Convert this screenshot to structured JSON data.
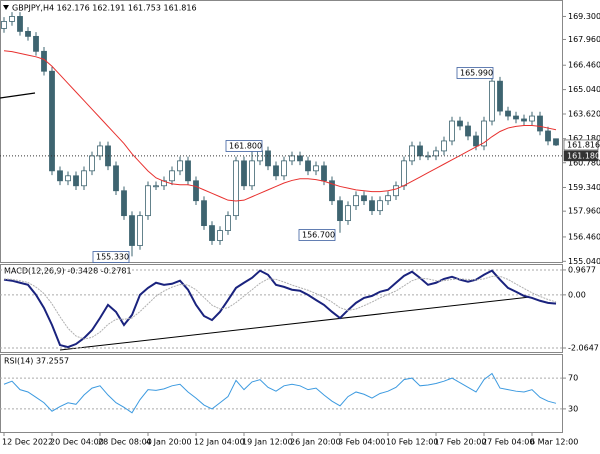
{
  "chart_data": [
    {
      "type": "candlestick",
      "title": "GBPJPY,H4  162.176 162.191 161.753 161.816",
      "categories": [
        "12 Dec 2022",
        null,
        null,
        null,
        null,
        null,
        "20 Dec 04:00",
        null,
        null,
        null,
        null,
        null,
        "28 Dec 08:00",
        null,
        null,
        null,
        null,
        null,
        "4 Jan 20:00",
        null,
        null,
        null,
        null,
        null,
        "12 Jan 04:00",
        null,
        null,
        null,
        null,
        null,
        "19 Jan 12:00",
        null,
        null,
        null,
        null,
        null,
        "26 Jan 20:00",
        null,
        null,
        null,
        null,
        null,
        "3 Feb 04:00",
        null,
        null,
        null,
        null,
        null,
        "10 Feb 12:00",
        null,
        null,
        null,
        null,
        null,
        "17 Feb 20:00",
        null,
        null,
        null,
        null,
        null,
        "27 Feb 04:00",
        null,
        null,
        null,
        null,
        null,
        "6 Mar 12:00",
        null,
        null,
        null
      ],
      "open": [
        168.6,
        169.01,
        169.3,
        168.43,
        168.14,
        167.27,
        166.11,
        160.31,
        159.73,
        160.02,
        159.44,
        160.31,
        161.18,
        161.76,
        160.6,
        159.15,
        157.7,
        155.96,
        157.7,
        159.44,
        159.44,
        159.73,
        160.31,
        160.89,
        159.73,
        158.57,
        157.12,
        156.25,
        156.83,
        157.7,
        160.89,
        159.44,
        160.89,
        161.47,
        160.6,
        160.02,
        160.89,
        161.18,
        160.89,
        160.31,
        160.6,
        159.73,
        158.57,
        157.41,
        158.28,
        158.86,
        158.57,
        157.99,
        158.57,
        158.86,
        159.44,
        160.89,
        161.76,
        161.18,
        161.18,
        161.47,
        162.05,
        163.21,
        162.92,
        162.34,
        161.76,
        163.21,
        165.53,
        163.79,
        163.5,
        163.33,
        163.21,
        163.5,
        162.63,
        162.176
      ],
      "high": [
        169.26,
        169.55,
        169.55,
        168.68,
        168.39,
        167.52,
        166.36,
        160.56,
        160.27,
        160.27,
        160.56,
        161.43,
        162.01,
        162.01,
        160.85,
        159.4,
        157.95,
        157.95,
        159.69,
        159.69,
        159.98,
        160.56,
        161.14,
        161.14,
        159.98,
        158.82,
        157.37,
        157.08,
        157.95,
        161.14,
        161.14,
        161.8,
        161.72,
        161.72,
        160.85,
        161.14,
        161.43,
        161.43,
        161.14,
        160.85,
        160.85,
        159.98,
        158.82,
        158.53,
        159.11,
        159.11,
        158.82,
        158.82,
        159.11,
        159.69,
        161.14,
        162.01,
        162.01,
        161.43,
        161.72,
        162.3,
        163.46,
        163.46,
        163.17,
        162.59,
        163.46,
        165.99,
        165.78,
        164.04,
        163.75,
        163.58,
        163.75,
        163.75,
        162.88,
        162.191
      ],
      "low": [
        168.35,
        168.76,
        168.18,
        167.89,
        167.02,
        165.86,
        160.06,
        159.48,
        159.48,
        159.19,
        159.19,
        160.06,
        160.93,
        160.35,
        158.9,
        157.45,
        155.33,
        155.71,
        157.45,
        159.19,
        159.19,
        159.48,
        160.06,
        159.48,
        158.32,
        156.87,
        156.0,
        156.0,
        156.58,
        157.45,
        159.19,
        159.19,
        160.64,
        160.35,
        159.77,
        159.77,
        160.64,
        160.64,
        160.06,
        160.06,
        159.48,
        158.32,
        156.7,
        157.16,
        158.03,
        158.32,
        157.74,
        157.74,
        158.32,
        158.61,
        159.19,
        160.64,
        160.93,
        160.93,
        160.93,
        161.22,
        161.8,
        162.67,
        162.09,
        161.51,
        161.51,
        162.96,
        163.54,
        163.25,
        163.08,
        162.96,
        162.96,
        162.38,
        161.8,
        161.753
      ],
      "close": [
        169.01,
        169.3,
        168.43,
        168.14,
        167.27,
        166.11,
        160.31,
        159.73,
        160.02,
        159.44,
        160.31,
        161.18,
        161.76,
        160.6,
        159.15,
        157.7,
        155.96,
        157.7,
        159.44,
        159.44,
        159.73,
        160.31,
        160.89,
        159.73,
        158.57,
        157.12,
        156.25,
        156.83,
        157.7,
        160.89,
        159.44,
        160.89,
        161.47,
        160.6,
        160.02,
        160.89,
        161.18,
        160.89,
        160.31,
        160.6,
        159.73,
        158.57,
        157.41,
        158.28,
        158.86,
        158.57,
        157.99,
        158.57,
        158.86,
        159.44,
        160.89,
        161.76,
        161.18,
        161.18,
        161.47,
        162.05,
        163.21,
        162.92,
        162.34,
        161.76,
        163.21,
        165.53,
        163.79,
        163.5,
        163.33,
        163.21,
        163.5,
        162.63,
        162.05,
        161.816
      ],
      "color": "#3e6470",
      "ma": {
        "color": "#e8312f",
        "values": [
          167.3,
          167.25,
          167.15,
          167.05,
          166.95,
          166.8,
          166.4,
          165.9,
          165.4,
          164.9,
          164.4,
          163.9,
          163.4,
          162.9,
          162.4,
          161.9,
          161.3,
          160.8,
          160.3,
          159.9,
          159.7,
          159.55,
          159.5,
          159.5,
          159.4,
          159.2,
          159.0,
          158.8,
          158.6,
          158.55,
          158.6,
          158.8,
          159.0,
          159.2,
          159.4,
          159.6,
          159.75,
          159.85,
          159.85,
          159.8,
          159.7,
          159.55,
          159.4,
          159.3,
          159.2,
          159.15,
          159.1,
          159.1,
          159.15,
          159.25,
          159.45,
          159.7,
          159.95,
          160.2,
          160.45,
          160.7,
          160.95,
          161.2,
          161.45,
          161.7,
          161.95,
          162.3,
          162.6,
          162.8,
          162.9,
          162.95,
          162.95,
          162.9,
          162.8,
          162.7
        ]
      },
      "ylim": [
        155.0,
        170.2
      ],
      "yticks": [
        {
          "value": 169.3,
          "label": "169.300"
        },
        {
          "value": 167.96,
          "label": "167.960"
        },
        {
          "value": 166.46,
          "label": "166.460"
        },
        {
          "value": 165.04,
          "label": "165.040"
        },
        {
          "value": 163.62,
          "label": "163.620"
        },
        {
          "value": 162.18,
          "label": "162.180"
        },
        {
          "value": 160.78,
          "label": "160.780"
        },
        {
          "value": 159.34,
          "label": "159.340"
        },
        {
          "value": 157.96,
          "label": "157.960"
        },
        {
          "value": 156.46,
          "label": "156.460"
        },
        {
          "value": 155.04,
          "label": "155.040"
        }
      ],
      "price_levels": [
        {
          "value": 161.816,
          "label": "161.816"
        },
        {
          "value": 161.18,
          "label": "161.180"
        }
      ],
      "annotations": [
        "165.990",
        "161.800",
        "155.330",
        "156.700"
      ]
    },
    {
      "type": "line",
      "title": "MACD(12,26,9) -0.3428 -0.2781",
      "series": [
        {
          "color": "#1a237e",
          "values": [
            0.59,
            0.55,
            0.47,
            0.39,
            0.0,
            -0.51,
            -1.17,
            -1.95,
            -2.03,
            -1.91,
            -1.68,
            -1.37,
            -0.9,
            -0.39,
            -0.66,
            -1.17,
            -0.78,
            0.0,
            0.27,
            0.47,
            0.39,
            0.43,
            0.55,
            0.2,
            -0.39,
            -0.82,
            -0.98,
            -0.66,
            -0.2,
            0.27,
            0.47,
            0.66,
            0.94,
            0.78,
            0.39,
            0.31,
            0.2,
            0.16,
            0.0,
            -0.2,
            -0.39,
            -0.66,
            -0.9,
            -0.59,
            -0.31,
            -0.12,
            -0.04,
            0.12,
            0.2,
            0.47,
            0.74,
            0.9,
            0.66,
            0.39,
            0.47,
            0.62,
            0.7,
            0.59,
            0.51,
            0.59,
            0.78,
            0.94,
            0.59,
            0.27,
            0.12,
            -0.04,
            -0.12,
            -0.23,
            -0.31,
            -0.3428
          ]
        },
        {
          "color": "#b0b0b0",
          "values": [
            0.62,
            0.6,
            0.55,
            0.48,
            0.3,
            0.05,
            -0.35,
            -0.85,
            -1.3,
            -1.6,
            -1.72,
            -1.65,
            -1.45,
            -1.15,
            -0.95,
            -0.95,
            -0.9,
            -0.65,
            -0.35,
            -0.05,
            0.15,
            0.3,
            0.4,
            0.38,
            0.2,
            -0.1,
            -0.4,
            -0.55,
            -0.5,
            -0.3,
            -0.05,
            0.2,
            0.45,
            0.62,
            0.6,
            0.5,
            0.38,
            0.28,
            0.18,
            0.05,
            -0.1,
            -0.28,
            -0.5,
            -0.6,
            -0.55,
            -0.42,
            -0.28,
            -0.12,
            0.02,
            0.15,
            0.35,
            0.55,
            0.65,
            0.62,
            0.55,
            0.55,
            0.6,
            0.62,
            0.6,
            0.58,
            0.62,
            0.72,
            0.72,
            0.6,
            0.42,
            0.25,
            0.08,
            -0.06,
            -0.18,
            -0.2781
          ]
        }
      ],
      "ylim": [
        -2.22,
        1.16
      ],
      "yticks": [
        0.9677,
        {
          "value": 0,
          "label": "0.00"
        },
        -2.0647
      ]
    },
    {
      "type": "line",
      "title": "RSI(14) 37.2557",
      "series": [
        {
          "color": "#3c9ae0",
          "values": [
            62,
            66,
            55,
            52,
            45,
            38,
            27,
            33,
            38,
            36,
            48,
            57,
            60,
            48,
            38,
            32,
            25,
            42,
            55,
            54,
            56,
            60,
            62,
            52,
            44,
            35,
            30,
            38,
            46,
            67,
            55,
            65,
            68,
            58,
            53,
            60,
            62,
            60,
            55,
            57,
            48,
            40,
            34,
            46,
            52,
            49,
            44,
            50,
            53,
            58,
            68,
            70,
            60,
            61,
            63,
            66,
            70,
            64,
            58,
            52,
            68,
            76,
            57,
            55,
            53,
            52,
            55,
            45,
            40,
            37.2557
          ]
        }
      ],
      "ylim": [
        0,
        100
      ],
      "yticks": [
        70,
        30
      ]
    }
  ]
}
